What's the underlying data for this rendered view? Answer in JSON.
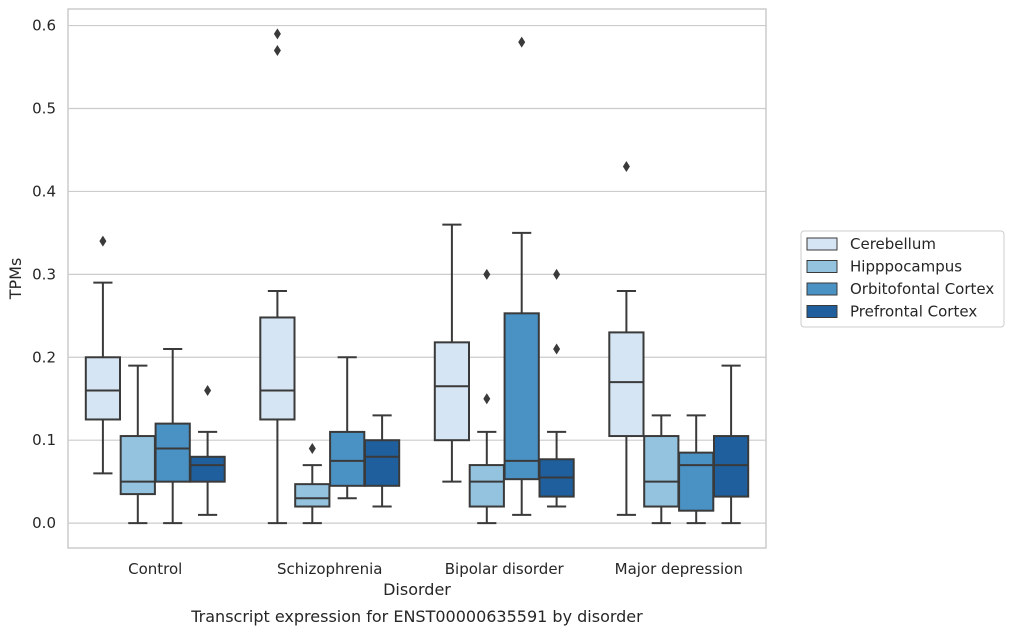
{
  "chart_data": {
    "type": "box",
    "title": "",
    "caption": "Transcript expression for ENST00000635591 by disorder",
    "xlabel": "Disorder",
    "ylabel": "TPMs",
    "ylim": [
      -0.03,
      0.62
    ],
    "yticks": [
      "0.0",
      "0.1",
      "0.2",
      "0.3",
      "0.4",
      "0.5",
      "0.6"
    ],
    "grid": "horizontal",
    "legend_position": "right",
    "categories": [
      "Control",
      "Schizophrenia",
      "Bipolar disorder",
      "Major depression"
    ],
    "series": [
      {
        "name": "Cerebellum",
        "color": "#d6e5f3",
        "boxes": [
          {
            "whislo": 0.06,
            "q1": 0.125,
            "med": 0.16,
            "q3": 0.2,
            "whishi": 0.29,
            "fliers": [
              0.34
            ]
          },
          {
            "whislo": 0.0,
            "q1": 0.125,
            "med": 0.16,
            "q3": 0.248,
            "whishi": 0.28,
            "fliers": [
              0.57,
              0.59
            ]
          },
          {
            "whislo": 0.05,
            "q1": 0.1,
            "med": 0.165,
            "q3": 0.218,
            "whishi": 0.36,
            "fliers": []
          },
          {
            "whislo": 0.01,
            "q1": 0.105,
            "med": 0.17,
            "q3": 0.23,
            "whishi": 0.28,
            "fliers": [
              0.43
            ]
          }
        ]
      },
      {
        "name": "Hipppocampus",
        "color": "#93c3df",
        "boxes": [
          {
            "whislo": 0.0,
            "q1": 0.035,
            "med": 0.05,
            "q3": 0.105,
            "whishi": 0.19,
            "fliers": []
          },
          {
            "whislo": 0.0,
            "q1": 0.02,
            "med": 0.03,
            "q3": 0.047,
            "whishi": 0.07,
            "fliers": [
              0.09
            ]
          },
          {
            "whislo": 0.0,
            "q1": 0.02,
            "med": 0.05,
            "q3": 0.07,
            "whishi": 0.11,
            "fliers": [
              0.15,
              0.3
            ]
          },
          {
            "whislo": 0.0,
            "q1": 0.02,
            "med": 0.05,
            "q3": 0.105,
            "whishi": 0.13,
            "fliers": []
          }
        ]
      },
      {
        "name": "Orbitofontal Cortex",
        "color": "#4a92c4",
        "boxes": [
          {
            "whislo": 0.0,
            "q1": 0.05,
            "med": 0.09,
            "q3": 0.12,
            "whishi": 0.21,
            "fliers": []
          },
          {
            "whislo": 0.03,
            "q1": 0.045,
            "med": 0.075,
            "q3": 0.11,
            "whishi": 0.2,
            "fliers": []
          },
          {
            "whislo": 0.01,
            "q1": 0.053,
            "med": 0.075,
            "q3": 0.253,
            "whishi": 0.35,
            "fliers": [
              0.58
            ]
          },
          {
            "whislo": 0.0,
            "q1": 0.015,
            "med": 0.07,
            "q3": 0.085,
            "whishi": 0.13,
            "fliers": []
          }
        ]
      },
      {
        "name": "Prefrontal Cortex",
        "color": "#1f5f9d",
        "boxes": [
          {
            "whislo": 0.01,
            "q1": 0.05,
            "med": 0.07,
            "q3": 0.08,
            "whishi": 0.11,
            "fliers": [
              0.16
            ]
          },
          {
            "whislo": 0.02,
            "q1": 0.045,
            "med": 0.08,
            "q3": 0.1,
            "whishi": 0.13,
            "fliers": []
          },
          {
            "whislo": 0.02,
            "q1": 0.032,
            "med": 0.055,
            "q3": 0.077,
            "whishi": 0.11,
            "fliers": [
              0.21,
              0.3
            ]
          },
          {
            "whislo": 0.0,
            "q1": 0.032,
            "med": 0.07,
            "q3": 0.105,
            "whishi": 0.19,
            "fliers": []
          }
        ]
      }
    ]
  }
}
